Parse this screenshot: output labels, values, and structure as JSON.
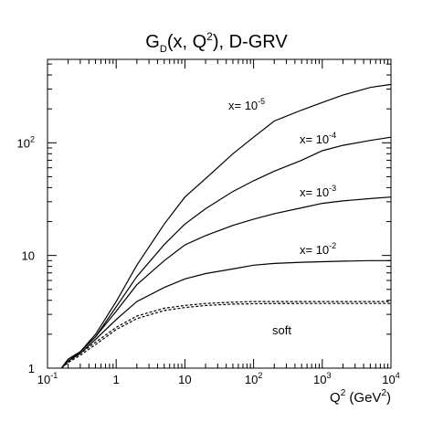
{
  "chart_data": {
    "type": "line",
    "title": [
      "G",
      "D",
      "(x, Q",
      "2",
      "), D-GRV"
    ],
    "x_label": [
      "Q",
      "2",
      " (GeV",
      "2",
      ")"
    ],
    "log_x": true,
    "log_y": true,
    "xlim": [
      0.1,
      10000
    ],
    "ylim": [
      1,
      550
    ],
    "xticks": [
      {
        "value": 0.1,
        "label": [
          "10",
          "-1"
        ]
      },
      {
        "value": 1,
        "label": [
          "1"
        ]
      },
      {
        "value": 10,
        "label": [
          "10"
        ]
      },
      {
        "value": 100,
        "label": [
          "10",
          "2"
        ]
      },
      {
        "value": 1000,
        "label": [
          "10",
          "3"
        ]
      },
      {
        "value": 10000,
        "label": [
          "10",
          "4"
        ]
      }
    ],
    "yticks": [
      {
        "value": 1,
        "label": [
          "1"
        ]
      },
      {
        "value": 10,
        "label": [
          "10"
        ]
      },
      {
        "value": 100,
        "label": [
          "10",
          "2"
        ]
      }
    ],
    "x": [
      0.16,
      0.2,
      0.3,
      0.5,
      1,
      2,
      5,
      10,
      20,
      50,
      100,
      200,
      500,
      1000,
      2000,
      5000,
      10000
    ],
    "series": [
      {
        "label": [
          "x= 10",
          "-5"
        ],
        "color": "#000",
        "dashed": false,
        "values": [
          1,
          1.2,
          1.4,
          2.0,
          3.9,
          8.2,
          19,
          33,
          48,
          80,
          112,
          156,
          195,
          228,
          265,
          310,
          330
        ]
      },
      {
        "label": [
          "x= 10",
          "-4"
        ],
        "color": "#000",
        "dashed": false,
        "values": [
          1,
          1.2,
          1.4,
          1.9,
          3.5,
          6.5,
          12.5,
          19,
          26,
          37,
          46,
          56,
          70,
          85,
          95,
          105,
          112
        ]
      },
      {
        "label": [
          "x= 10",
          "-3"
        ],
        "color": "#000",
        "dashed": false,
        "values": [
          1,
          1.15,
          1.4,
          1.9,
          3.2,
          5.5,
          9,
          12.4,
          15,
          18.5,
          21,
          23.5,
          26.5,
          29,
          30.5,
          32,
          33
        ]
      },
      {
        "label": [
          "x= 10",
          "-2"
        ],
        "color": "#000",
        "dashed": false,
        "values": [
          1,
          1.15,
          1.35,
          1.8,
          2.7,
          3.9,
          5.2,
          6.2,
          6.9,
          7.6,
          8.2,
          8.5,
          8.7,
          8.8,
          8.9,
          9.0,
          9.0
        ]
      },
      {
        "label": [
          "soft"
        ],
        "color": "#000",
        "dashed": true,
        "values": [
          1,
          1.15,
          1.35,
          1.7,
          2.3,
          2.9,
          3.4,
          3.6,
          3.75,
          3.85,
          3.9,
          3.9,
          3.9,
          3.9,
          3.9,
          3.9,
          3.9
        ]
      },
      {
        "color": "#000",
        "dashed": true,
        "values": [
          1,
          1.12,
          1.3,
          1.62,
          2.2,
          2.75,
          3.25,
          3.45,
          3.6,
          3.7,
          3.73,
          3.74,
          3.75,
          3.75,
          3.75,
          3.75,
          3.75
        ]
      }
    ]
  }
}
